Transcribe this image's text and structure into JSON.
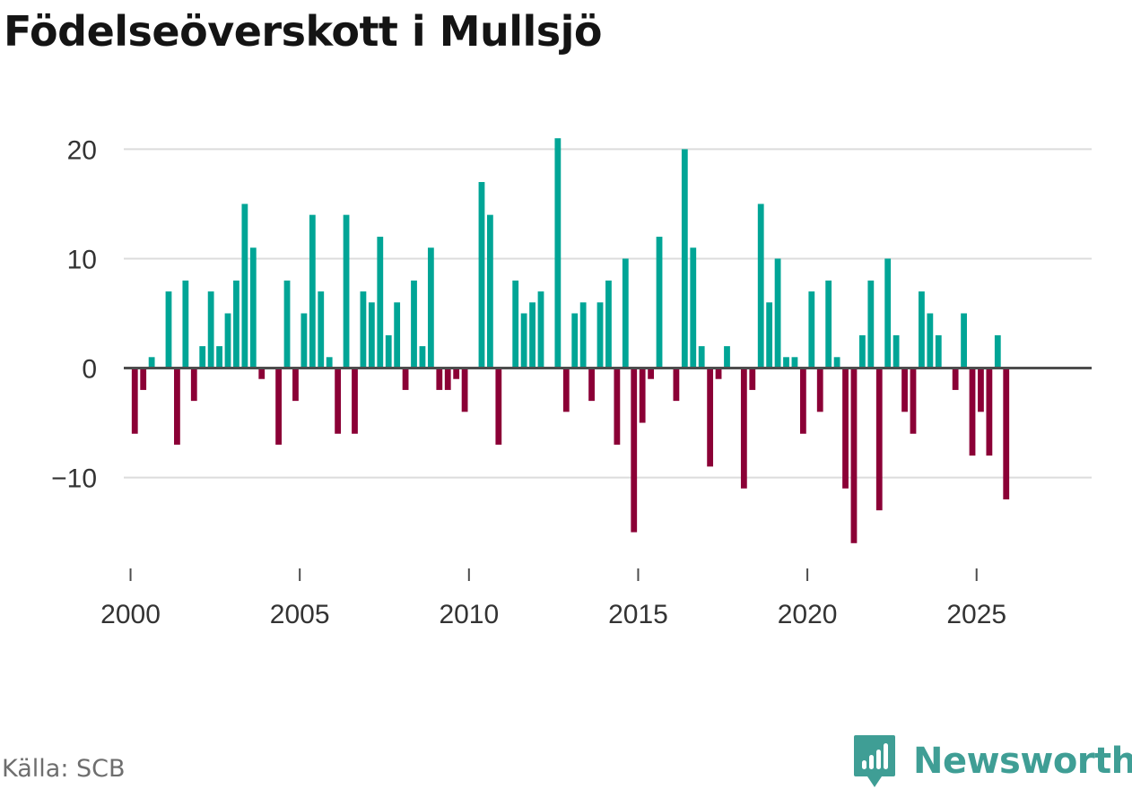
{
  "title": "Födelseöverskott i Mullsjö",
  "source": "Källa: SCB",
  "brand": {
    "name": "Newsworthy",
    "icon": "newsworthy-logo-icon"
  },
  "colors": {
    "positive": "#00a596",
    "negative": "#8b0036",
    "grid": "#dcdcdc",
    "zero": "#4d4d4d",
    "text": "#333333",
    "brand": "#3f9e95"
  },
  "chart_data": {
    "type": "bar",
    "title": "Födelseöverskott i Mullsjö",
    "xlabel": "",
    "ylabel": "",
    "ylim": [
      -17,
      22
    ],
    "xlim": [
      1999.8,
      2028.4
    ],
    "grid": true,
    "yticks": [
      -10,
      0,
      10,
      20
    ],
    "xticks": [
      2000,
      2005,
      2010,
      2015,
      2020,
      2025
    ],
    "ytick_labels": [
      "−10",
      "0",
      "10",
      "20"
    ],
    "xtick_labels": [
      "2000",
      "2005",
      "2010",
      "2015",
      "2020",
      "2025"
    ],
    "bar_width_quarters": 0.72,
    "values": [
      {
        "x": 2000.125,
        "y": -6
      },
      {
        "x": 2000.375,
        "y": -2
      },
      {
        "x": 2000.625,
        "y": 1
      },
      {
        "x": 2001.125,
        "y": 7
      },
      {
        "x": 2001.375,
        "y": -7
      },
      {
        "x": 2001.625,
        "y": 8
      },
      {
        "x": 2001.875,
        "y": -3
      },
      {
        "x": 2002.125,
        "y": 2
      },
      {
        "x": 2002.375,
        "y": 7
      },
      {
        "x": 2002.625,
        "y": 2
      },
      {
        "x": 2002.875,
        "y": 5
      },
      {
        "x": 2003.125,
        "y": 8
      },
      {
        "x": 2003.375,
        "y": 15
      },
      {
        "x": 2003.625,
        "y": 11
      },
      {
        "x": 2003.875,
        "y": -1
      },
      {
        "x": 2004.375,
        "y": -7
      },
      {
        "x": 2004.625,
        "y": 8
      },
      {
        "x": 2004.875,
        "y": -3
      },
      {
        "x": 2005.125,
        "y": 5
      },
      {
        "x": 2005.375,
        "y": 14
      },
      {
        "x": 2005.625,
        "y": 7
      },
      {
        "x": 2005.875,
        "y": 1
      },
      {
        "x": 2006.125,
        "y": -6
      },
      {
        "x": 2006.375,
        "y": 14
      },
      {
        "x": 2006.625,
        "y": -6
      },
      {
        "x": 2006.875,
        "y": 7
      },
      {
        "x": 2007.125,
        "y": 6
      },
      {
        "x": 2007.375,
        "y": 12
      },
      {
        "x": 2007.625,
        "y": 3
      },
      {
        "x": 2007.875,
        "y": 6
      },
      {
        "x": 2008.125,
        "y": -2
      },
      {
        "x": 2008.375,
        "y": 8
      },
      {
        "x": 2008.625,
        "y": 2
      },
      {
        "x": 2008.875,
        "y": 11
      },
      {
        "x": 2009.125,
        "y": -2
      },
      {
        "x": 2009.375,
        "y": -2
      },
      {
        "x": 2009.625,
        "y": -1
      },
      {
        "x": 2009.875,
        "y": -4
      },
      {
        "x": 2010.375,
        "y": 17
      },
      {
        "x": 2010.625,
        "y": 14
      },
      {
        "x": 2010.875,
        "y": -7
      },
      {
        "x": 2011.375,
        "y": 8
      },
      {
        "x": 2011.625,
        "y": 5
      },
      {
        "x": 2011.875,
        "y": 6
      },
      {
        "x": 2012.125,
        "y": 7
      },
      {
        "x": 2012.625,
        "y": 21
      },
      {
        "x": 2012.875,
        "y": -4
      },
      {
        "x": 2013.125,
        "y": 5
      },
      {
        "x": 2013.375,
        "y": 6
      },
      {
        "x": 2013.625,
        "y": -3
      },
      {
        "x": 2013.875,
        "y": 6
      },
      {
        "x": 2014.125,
        "y": 8
      },
      {
        "x": 2014.375,
        "y": -7
      },
      {
        "x": 2014.625,
        "y": 10
      },
      {
        "x": 2014.875,
        "y": -15
      },
      {
        "x": 2015.125,
        "y": -5
      },
      {
        "x": 2015.375,
        "y": -1
      },
      {
        "x": 2015.625,
        "y": 12
      },
      {
        "x": 2016.125,
        "y": -3
      },
      {
        "x": 2016.375,
        "y": 20
      },
      {
        "x": 2016.625,
        "y": 11
      },
      {
        "x": 2016.875,
        "y": 2
      },
      {
        "x": 2017.125,
        "y": -9
      },
      {
        "x": 2017.375,
        "y": -1
      },
      {
        "x": 2017.625,
        "y": 2
      },
      {
        "x": 2018.125,
        "y": -11
      },
      {
        "x": 2018.375,
        "y": -2
      },
      {
        "x": 2018.625,
        "y": 15
      },
      {
        "x": 2018.875,
        "y": 6
      },
      {
        "x": 2019.125,
        "y": 10
      },
      {
        "x": 2019.375,
        "y": 1
      },
      {
        "x": 2019.625,
        "y": 1
      },
      {
        "x": 2019.875,
        "y": -6
      },
      {
        "x": 2020.125,
        "y": 7
      },
      {
        "x": 2020.375,
        "y": -4
      },
      {
        "x": 2020.625,
        "y": 8
      },
      {
        "x": 2020.875,
        "y": 1
      },
      {
        "x": 2021.125,
        "y": -11
      },
      {
        "x": 2021.375,
        "y": -16
      },
      {
        "x": 2021.625,
        "y": 3
      },
      {
        "x": 2021.875,
        "y": 8
      },
      {
        "x": 2022.125,
        "y": -13
      },
      {
        "x": 2022.375,
        "y": 10
      },
      {
        "x": 2022.625,
        "y": 3
      },
      {
        "x": 2022.875,
        "y": -4
      },
      {
        "x": 2023.125,
        "y": -6
      },
      {
        "x": 2023.375,
        "y": 7
      },
      {
        "x": 2023.625,
        "y": 5
      },
      {
        "x": 2023.875,
        "y": 3
      },
      {
        "x": 2024.375,
        "y": -2
      },
      {
        "x": 2024.625,
        "y": 5
      },
      {
        "x": 2024.875,
        "y": -8
      },
      {
        "x": 2025.125,
        "y": -4
      },
      {
        "x": 2025.375,
        "y": -8
      },
      {
        "x": 2025.625,
        "y": 3
      },
      {
        "x": 2025.875,
        "y": -12
      }
    ]
  }
}
